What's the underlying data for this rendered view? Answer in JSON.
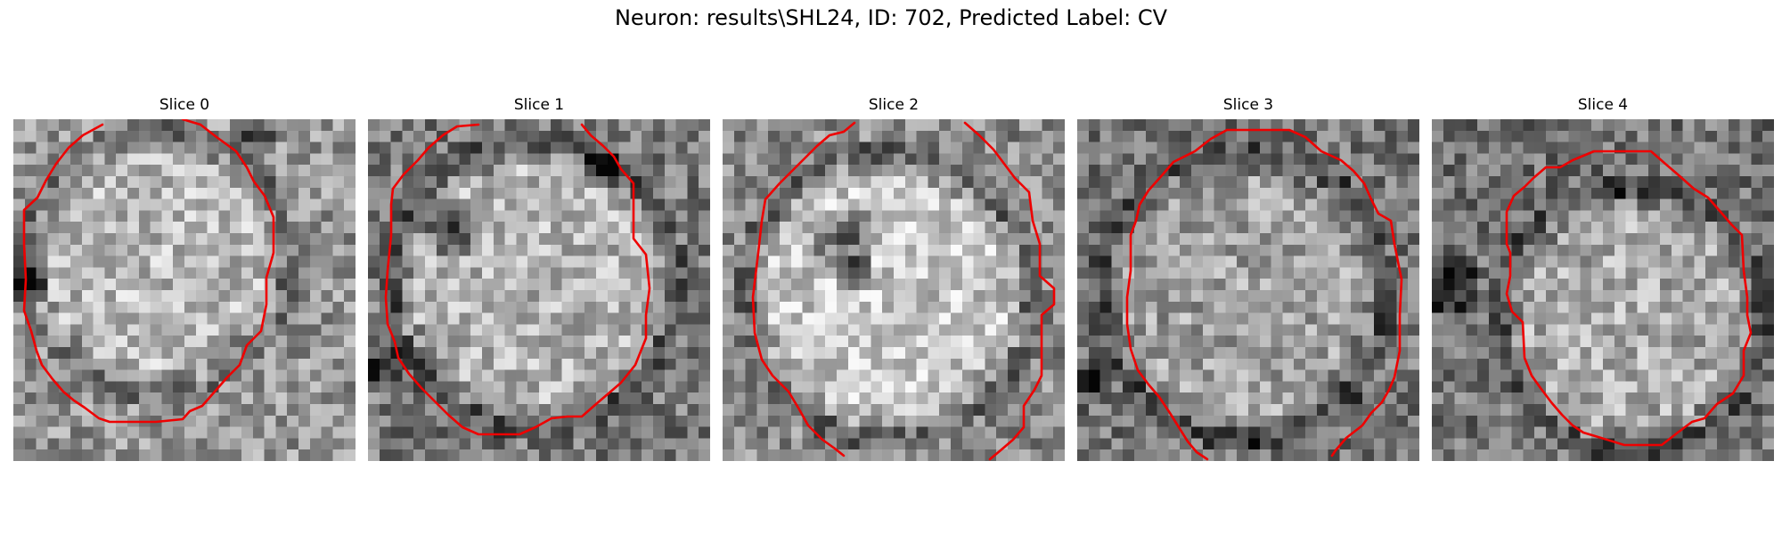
{
  "figure": {
    "title": "Neuron: results\\SHL24, ID: 702, Predicted Label: CV",
    "contour_color": "#ee0000",
    "panels": [
      {
        "title": "Slice 0"
      },
      {
        "title": "Slice 1"
      },
      {
        "title": "Slice 2"
      },
      {
        "title": "Slice 3"
      },
      {
        "title": "Slice 4"
      }
    ]
  }
}
